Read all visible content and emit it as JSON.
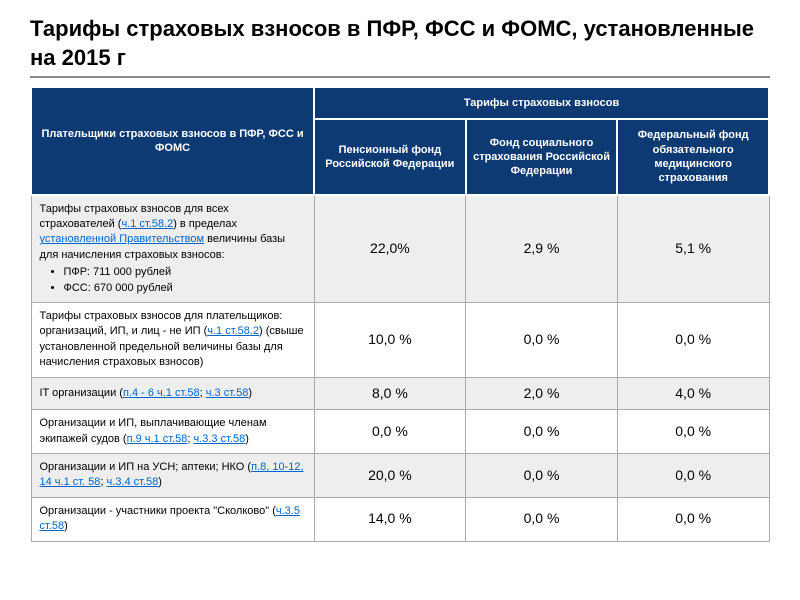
{
  "title": "Тарифы страховых взносов в ПФР, ФСС и ФОМС, установленные на 2015 г",
  "headers": {
    "payers": "Плательщики страховых взносов в ПФР, ФСС и ФОМС",
    "rates_group": "Тарифы страховых взносов",
    "col1": "Пенсионный фонд Российской Федерации",
    "col2": "Фонд социального страхования Российской Федерации",
    "col3": "Федеральный фонд обязательного медицинского страхования"
  },
  "rows": [
    {
      "desc_pre": "Тарифы страховых взносов для всех страхователей (",
      "link1": "ч.1 ст.58.2",
      "desc_mid": ") в пределах ",
      "link2": "установленной Правительством",
      "desc_post": " величины базы для начисления страховых взносов:",
      "bullets": [
        "ПФР: 711 000 рублей",
        "ФСС: 670 000 рублей"
      ],
      "pfr": "22,0%",
      "fss": "2,9 %",
      "foms": "5,1 %"
    },
    {
      "desc_pre": "Тарифы страховых взносов для плательщиков: организаций, ИП, и лиц - не ИП (",
      "link1": "ч.1 ст.58.2",
      "desc_post": ") (свыше установленной предельной величины базы для начисления страховых взносов)",
      "pfr": "10,0 %",
      "fss": "0,0 %",
      "foms": "0,0 %"
    },
    {
      "desc_pre": "IT организации (",
      "link1": "п.4 - 6 ч.1 ст.58",
      "desc_mid": "; ",
      "link2": "ч.3 ст.58",
      "desc_post": ")",
      "pfr": "8,0 %",
      "fss": "2,0 %",
      "foms": "4,0 %"
    },
    {
      "desc_pre": "Организации и ИП, выплачивающие членам экипажей судов (",
      "link1": "п.9 ч.1 ст.58",
      "desc_mid": "; ",
      "link2": "ч.3.3 ст.58",
      "desc_post": ")",
      "pfr": "0,0 %",
      "fss": "0,0 %",
      "foms": "0,0 %"
    },
    {
      "desc_pre": "Организации и ИП на УСН; аптеки; НКО (",
      "link1": "п.8, 10-12, 14 ч.1 ст. 58",
      "desc_mid": "; ",
      "link2": "ч.3.4 ст.58",
      "desc_post": ")",
      "pfr": "20,0 %",
      "fss": "0,0 %",
      "foms": "0,0 %"
    },
    {
      "desc_pre": "Организации - участники проекта \"Сколково\" (",
      "link1": "ч.3.5 ст.58",
      "desc_post": ")",
      "pfr": "14,0 %",
      "fss": "0,0 %",
      "foms": "0,0 %"
    }
  ],
  "colors": {
    "header_bg": "#0d3a73",
    "header_fg": "#ffffff",
    "link": "#0066cc",
    "alt_row": "#eeeeee",
    "border": "#aaaaaa"
  }
}
